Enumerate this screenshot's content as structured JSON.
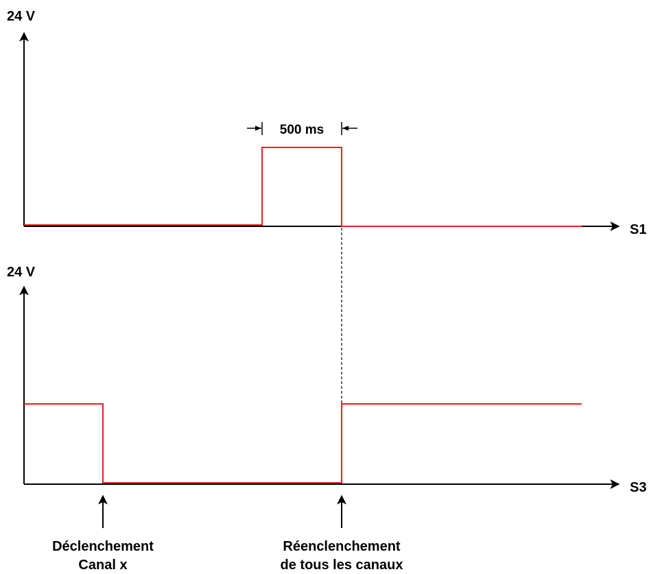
{
  "colors": {
    "axis": "#000000",
    "signal": "#e52222",
    "guide": "#000000"
  },
  "top_plot": {
    "y_label": "24 V",
    "x_label": "S1",
    "pulse_duration_label": "500 ms"
  },
  "bottom_plot": {
    "y_label": "24 V",
    "x_label": "S3"
  },
  "events": {
    "trip_line1": "Déclenchement",
    "trip_line2": "Canal x",
    "reset_line1": "Réenclenchement",
    "reset_line2": "de tous les canaux"
  }
}
